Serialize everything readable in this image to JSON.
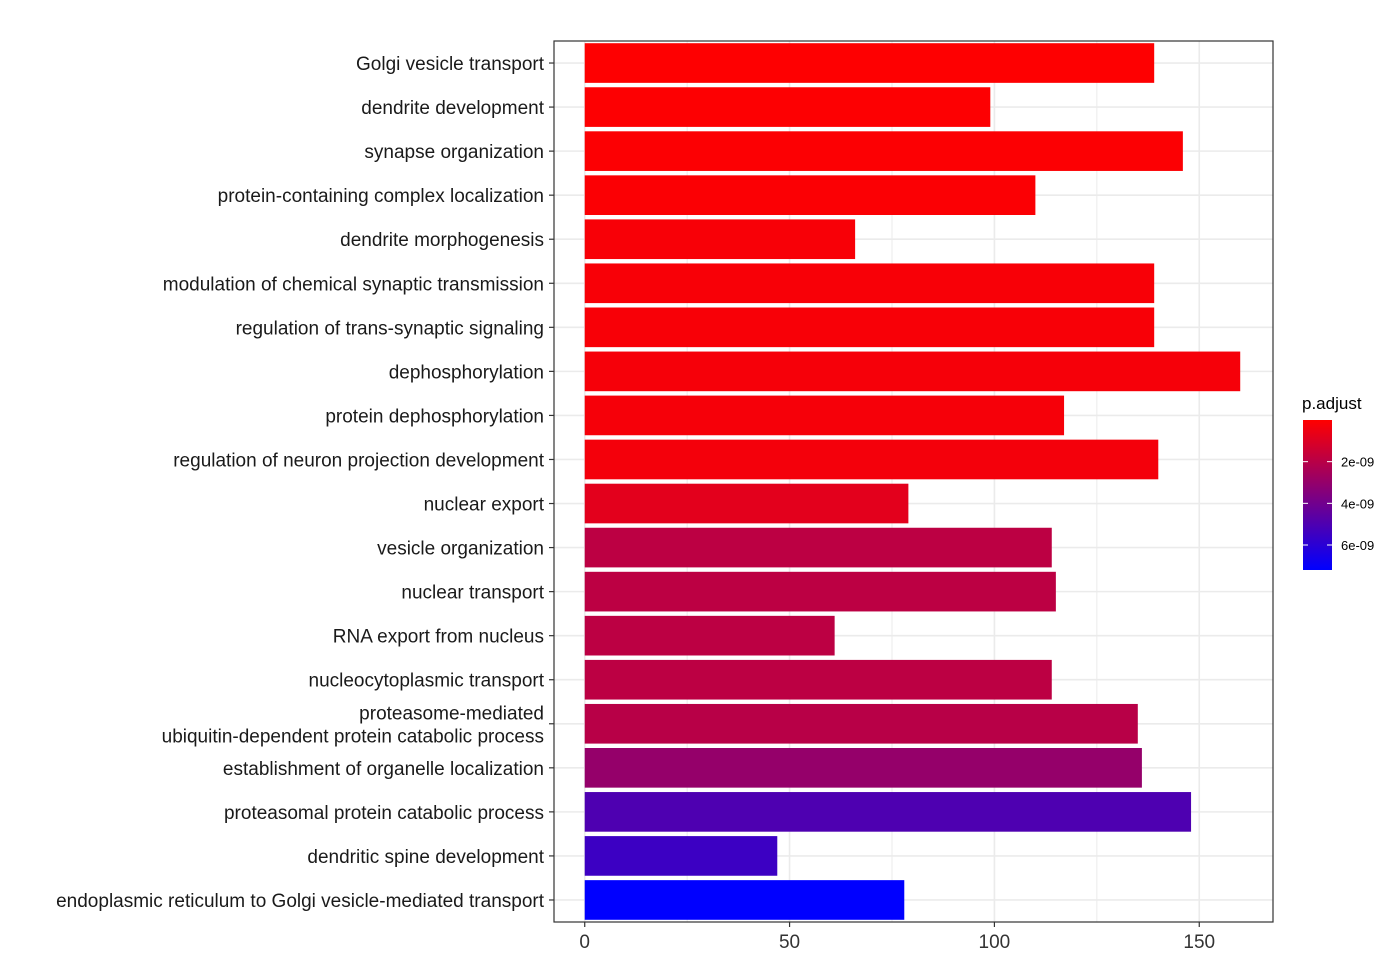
{
  "chart_data": {
    "type": "bar",
    "orientation": "horizontal",
    "categories": [
      "Golgi vesicle transport",
      "dendrite development",
      "synapse organization",
      "protein-containing complex localization",
      "dendrite morphogenesis",
      "modulation of chemical synaptic transmission",
      "regulation of trans-synaptic signaling",
      "dephosphorylation",
      "protein dephosphorylation",
      "regulation of neuron projection development",
      "nuclear export",
      "vesicle organization",
      "nuclear transport",
      "RNA export from nucleus",
      "nucleocytoplasmic transport",
      "proteasome-mediated\nubiquitin-dependent protein catabolic process",
      "establishment of organelle localization",
      "proteasomal protein catabolic process",
      "dendritic spine development",
      "endoplasmic reticulum to Golgi vesicle-mediated transport"
    ],
    "values": [
      139,
      99,
      146,
      110,
      66,
      139,
      139,
      160,
      117,
      140,
      79,
      114,
      115,
      61,
      114,
      135,
      136,
      148,
      47,
      78
    ],
    "p_adjust": [
      2e-11,
      6e-11,
      8e-11,
      1e-10,
      2e-10,
      2e-10,
      2e-10,
      2.5e-10,
      2.6e-10,
      3e-10,
      8e-10,
      1.9e-09,
      1.9e-09,
      1.9e-09,
      1.9e-09,
      2e-09,
      3e-09,
      5e-09,
      5.5e-09,
      7.2e-09
    ],
    "xlim": [
      -7.5,
      168
    ],
    "xticks": [
      0,
      50,
      100,
      150
    ],
    "xtick_labels": [
      "0",
      "50",
      "100",
      "150"
    ],
    "xlabel": "",
    "ylabel": "",
    "title": "",
    "grid": true,
    "legend": {
      "title": "p.adjust",
      "position": "right",
      "range": [
        0,
        7.2e-09
      ],
      "ticks": [
        2e-09,
        4e-09,
        6e-09
      ],
      "tick_labels": [
        "2e-09",
        "4e-09",
        "6e-09"
      ],
      "color_low": "#ff0000",
      "color_high": "#0000ff"
    }
  }
}
